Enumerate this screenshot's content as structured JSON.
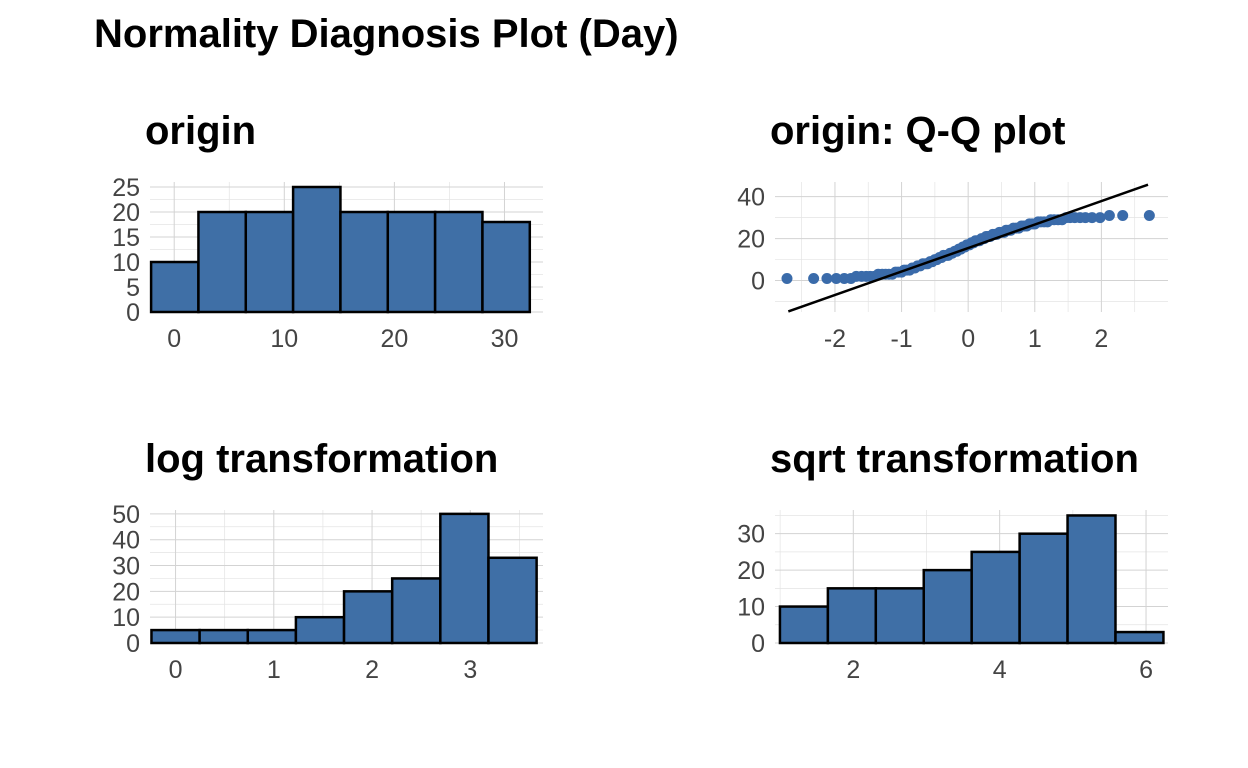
{
  "main_title": "Normality Diagnosis Plot (Day)",
  "colors": {
    "fill": "#3F6FA6",
    "border": "#000000",
    "point": "#3A6BAA",
    "line": "#000000"
  },
  "chart_data": [
    {
      "id": "origin",
      "type": "bar",
      "title": "origin",
      "xlabel": "",
      "ylabel": "",
      "xlim": [
        -2.2,
        33.5
      ],
      "ylim": [
        0,
        26
      ],
      "bin_width": 4.3,
      "bins": [
        {
          "x": 0.05,
          "value": 10
        },
        {
          "x": 4.35,
          "value": 20
        },
        {
          "x": 8.65,
          "value": 20
        },
        {
          "x": 12.95,
          "value": 25
        },
        {
          "x": 17.25,
          "value": 20
        },
        {
          "x": 21.55,
          "value": 20
        },
        {
          "x": 25.85,
          "value": 20
        },
        {
          "x": 30.15,
          "value": 18
        }
      ],
      "x_ticks": [
        0,
        10,
        20,
        30
      ],
      "y_ticks": [
        0,
        5,
        10,
        15,
        20,
        25
      ],
      "grid": true
    },
    {
      "id": "qq",
      "type": "scatter",
      "title": "origin: Q-Q plot",
      "xlabel": "",
      "ylabel": "",
      "xlim": [
        -2.9,
        3.0
      ],
      "ylim": [
        -15,
        47
      ],
      "x_ticks": [
        -2,
        -1,
        0,
        1,
        2
      ],
      "y_ticks": [
        0,
        20,
        40
      ],
      "reference_line": {
        "slope": 11.2,
        "intercept": 15.5
      },
      "points": [
        [
          -2.72,
          1
        ],
        [
          -2.32,
          1
        ],
        [
          -2.12,
          1
        ],
        [
          -1.98,
          1
        ],
        [
          -1.86,
          1
        ],
        [
          -1.76,
          1
        ],
        [
          -1.68,
          2
        ],
        [
          -1.6,
          2
        ],
        [
          -1.53,
          2
        ],
        [
          -1.47,
          2
        ],
        [
          -1.41,
          2
        ],
        [
          -1.35,
          3
        ],
        [
          -1.29,
          3
        ],
        [
          -1.24,
          3
        ],
        [
          -1.19,
          3
        ],
        [
          -1.14,
          3
        ],
        [
          -1.09,
          4
        ],
        [
          -1.05,
          4
        ],
        [
          -1.0,
          4
        ],
        [
          -0.96,
          5
        ],
        [
          -0.92,
          5
        ],
        [
          -0.88,
          5
        ],
        [
          -0.84,
          6
        ],
        [
          -0.8,
          6
        ],
        [
          -0.76,
          7
        ],
        [
          -0.72,
          7
        ],
        [
          -0.68,
          8
        ],
        [
          -0.64,
          8
        ],
        [
          -0.61,
          8
        ],
        [
          -0.57,
          9
        ],
        [
          -0.54,
          9
        ],
        [
          -0.5,
          10
        ],
        [
          -0.47,
          10
        ],
        [
          -0.43,
          11
        ],
        [
          -0.4,
          11
        ],
        [
          -0.37,
          12
        ],
        [
          -0.33,
          12
        ],
        [
          -0.3,
          12
        ],
        [
          -0.27,
          13
        ],
        [
          -0.24,
          13
        ],
        [
          -0.2,
          14
        ],
        [
          -0.17,
          14
        ],
        [
          -0.14,
          15
        ],
        [
          -0.11,
          15
        ],
        [
          -0.08,
          16
        ],
        [
          -0.05,
          16
        ],
        [
          -0.02,
          17
        ],
        [
          0.02,
          17
        ],
        [
          0.05,
          18
        ],
        [
          0.08,
          18
        ],
        [
          0.11,
          19
        ],
        [
          0.14,
          19
        ],
        [
          0.17,
          19
        ],
        [
          0.2,
          20
        ],
        [
          0.24,
          20
        ],
        [
          0.27,
          21
        ],
        [
          0.3,
          21
        ],
        [
          0.33,
          21
        ],
        [
          0.37,
          22
        ],
        [
          0.4,
          22
        ],
        [
          0.43,
          22
        ],
        [
          0.47,
          23
        ],
        [
          0.5,
          23
        ],
        [
          0.54,
          23
        ],
        [
          0.57,
          24
        ],
        [
          0.61,
          24
        ],
        [
          0.64,
          24
        ],
        [
          0.68,
          25
        ],
        [
          0.72,
          25
        ],
        [
          0.76,
          25
        ],
        [
          0.8,
          26
        ],
        [
          0.84,
          26
        ],
        [
          0.88,
          26
        ],
        [
          0.92,
          27
        ],
        [
          0.96,
          27
        ],
        [
          1.0,
          27
        ],
        [
          1.05,
          28
        ],
        [
          1.09,
          28
        ],
        [
          1.14,
          28
        ],
        [
          1.19,
          28
        ],
        [
          1.24,
          29
        ],
        [
          1.29,
          29
        ],
        [
          1.35,
          29
        ],
        [
          1.41,
          29
        ],
        [
          1.47,
          30
        ],
        [
          1.53,
          30
        ],
        [
          1.6,
          30
        ],
        [
          1.68,
          30
        ],
        [
          1.76,
          30
        ],
        [
          1.86,
          30
        ],
        [
          1.98,
          30
        ],
        [
          2.12,
          31
        ],
        [
          2.32,
          31
        ],
        [
          2.72,
          31
        ]
      ],
      "grid": true
    },
    {
      "id": "log",
      "type": "bar",
      "title": "log transformation",
      "xlabel": "",
      "ylabel": "",
      "xlim": [
        -0.26,
        3.74
      ],
      "ylim": [
        0,
        51.5
      ],
      "bin_width": 0.49,
      "bins": [
        {
          "x": 0.0,
          "value": 5
        },
        {
          "x": 0.49,
          "value": 5
        },
        {
          "x": 0.98,
          "value": 5
        },
        {
          "x": 1.47,
          "value": 10
        },
        {
          "x": 1.96,
          "value": 20
        },
        {
          "x": 2.45,
          "value": 25
        },
        {
          "x": 2.94,
          "value": 50
        },
        {
          "x": 3.43,
          "value": 33
        }
      ],
      "x_ticks": [
        0,
        1,
        2,
        3
      ],
      "y_ticks": [
        0,
        10,
        20,
        30,
        40,
        50
      ],
      "grid": true
    },
    {
      "id": "sqrt",
      "type": "bar",
      "title": "sqrt transformation",
      "xlabel": "",
      "ylabel": "",
      "xlim": [
        0.93,
        6.3
      ],
      "ylim": [
        0,
        36.5
      ],
      "bin_width": 0.655,
      "bins": [
        {
          "x": 1.325,
          "value": 10
        },
        {
          "x": 1.98,
          "value": 15
        },
        {
          "x": 2.635,
          "value": 15
        },
        {
          "x": 3.29,
          "value": 20
        },
        {
          "x": 3.945,
          "value": 25
        },
        {
          "x": 4.6,
          "value": 30
        },
        {
          "x": 5.255,
          "value": 35
        },
        {
          "x": 5.91,
          "value": 3
        }
      ],
      "x_ticks": [
        2,
        4,
        6
      ],
      "y_ticks": [
        0,
        10,
        20,
        30
      ],
      "grid": true
    }
  ]
}
